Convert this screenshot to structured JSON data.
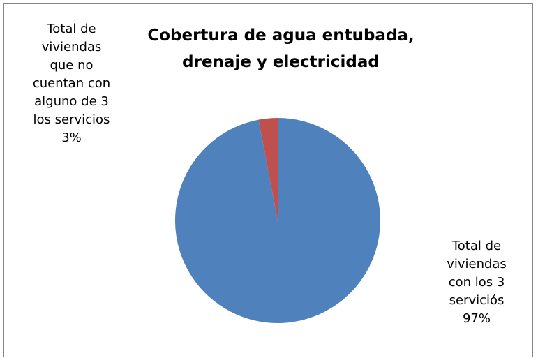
{
  "chart_data": {
    "type": "pie",
    "title": "Cobertura de agua entubada, drenaje y electricidad",
    "slices": [
      {
        "label_lines": [
          "Total de",
          "viviendas",
          "con los 3",
          "serviciós",
          "97%"
        ],
        "value": 97,
        "color": "#4F81BD"
      },
      {
        "label_lines": [
          "Total de",
          "viviendas",
          "que no",
          "cuentan con",
          "alguno de 3",
          "los servicios",
          "3%"
        ],
        "value": 3,
        "color": "#C0504D"
      }
    ],
    "legend": "none",
    "data_labels": "outside"
  }
}
